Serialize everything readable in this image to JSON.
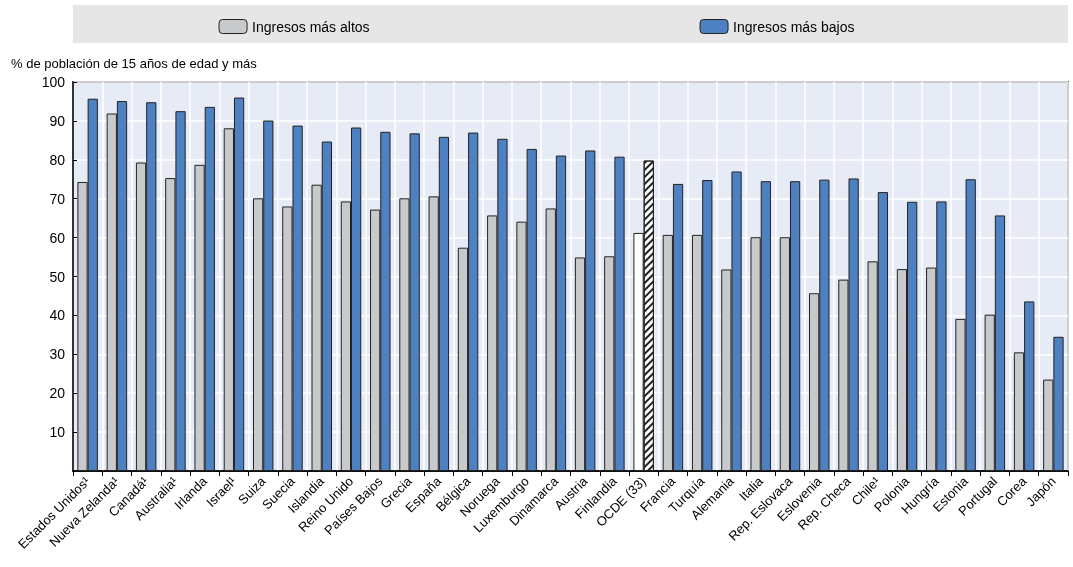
{
  "chart_data": {
    "type": "bar",
    "ylabel": "% de población de 15 años de edad y más",
    "categories": [
      "Estados Unidos¹",
      "Nueva Zelanda¹",
      "Canadá¹",
      "Australia¹",
      "Irlanda",
      "Israel¹",
      "Suiza",
      "Suecia",
      "Islandia",
      "Reino Unido",
      "Países Bajos",
      "Grecia",
      "España",
      "Bélgica",
      "Noruega",
      "Luxemburgo",
      "Dinamarca",
      "Austria",
      "Finlandia",
      "OCDE (33)",
      "Francia",
      "Turquía",
      "Alemania",
      "Italia",
      "Rep. Eslovaca",
      "Eslovenia",
      "Rep. Checa",
      "Chile¹",
      "Polonia",
      "Hungría",
      "Estonia",
      "Portugal",
      "Corea",
      "Japón"
    ],
    "series": [
      {
        "name": "Ingresos más altos",
        "color": "#c8c9cb",
        "colors": [
          "#c8c9cb",
          "#c8c9cb",
          "#c8c9cb",
          "#c8c9cb",
          "#c8c9cb",
          "#c8c9cb",
          "#c8c9cb",
          "#c8c9cb",
          "#c8c9cb",
          "#c8c9cb",
          "#c8c9cb",
          "#c8c9cb",
          "#c8c9cb",
          "#c8c9cb",
          "#c8c9cb",
          "#c8c9cb",
          "#c8c9cb",
          "#c8c9cb",
          "#c8c9cb",
          "#ffffff",
          "#c8c9cb",
          "#c8c9cb",
          "#c8c9cb",
          "#c8c9cb",
          "#c8c9cb",
          "#c8c9cb",
          "#c8c9cb",
          "#c8c9cb",
          "#c8c9cb",
          "#c8c9cb",
          "#c8c9cb",
          "#c8c9cb",
          "#c8c9cb",
          "#c8c9cb"
        ],
        "values": [
          74.3,
          91.9,
          79.3,
          75.3,
          78.7,
          88.1,
          70.1,
          68.0,
          73.6,
          69.3,
          67.2,
          70.1,
          70.6,
          57.4,
          65.7,
          64.1,
          67.5,
          54.9,
          55.2,
          61.2,
          60.7,
          60.7,
          51.8,
          60.1,
          60.1,
          45.7,
          49.2,
          53.9,
          51.9,
          52.3,
          39.1,
          40.2,
          30.5,
          23.5
        ]
      },
      {
        "name": "Ingresos más bajos",
        "color": "#4e81c1",
        "colors": [
          "#4e81c1",
          "#4e81c1",
          "#4e81c1",
          "#4e81c1",
          "#4e81c1",
          "#4e81c1",
          "#4e81c1",
          "#4e81c1",
          "#4e81c1",
          "#4e81c1",
          "#4e81c1",
          "#4e81c1",
          "#4e81c1",
          "#4e81c1",
          "#4e81c1",
          "#4e81c1",
          "#4e81c1",
          "#4e81c1",
          "#4e81c1",
          "#ffffff",
          "#4e81c1",
          "#4e81c1",
          "#4e81c1",
          "#4e81c1",
          "#4e81c1",
          "#4e81c1",
          "#4e81c1",
          "#4e81c1",
          "#4e81c1",
          "#4e81c1",
          "#4e81c1",
          "#4e81c1",
          "#4e81c1",
          "#4e81c1"
        ],
        "values": [
          95.7,
          95.1,
          94.8,
          92.5,
          93.6,
          96.0,
          90.1,
          88.8,
          84.7,
          88.3,
          87.2,
          86.8,
          85.9,
          87.0,
          85.4,
          82.8,
          81.1,
          82.4,
          80.8,
          79.8,
          73.8,
          74.8,
          77.0,
          74.5,
          74.5,
          74.9,
          75.2,
          71.7,
          69.2,
          69.3,
          75.0,
          65.7,
          43.6,
          34.5
        ]
      }
    ],
    "ylim": [
      0,
      100
    ],
    "yticks": [
      10,
      20,
      30,
      40,
      50,
      60,
      70,
      80,
      90,
      100
    ],
    "grid": true,
    "legend": "top"
  }
}
